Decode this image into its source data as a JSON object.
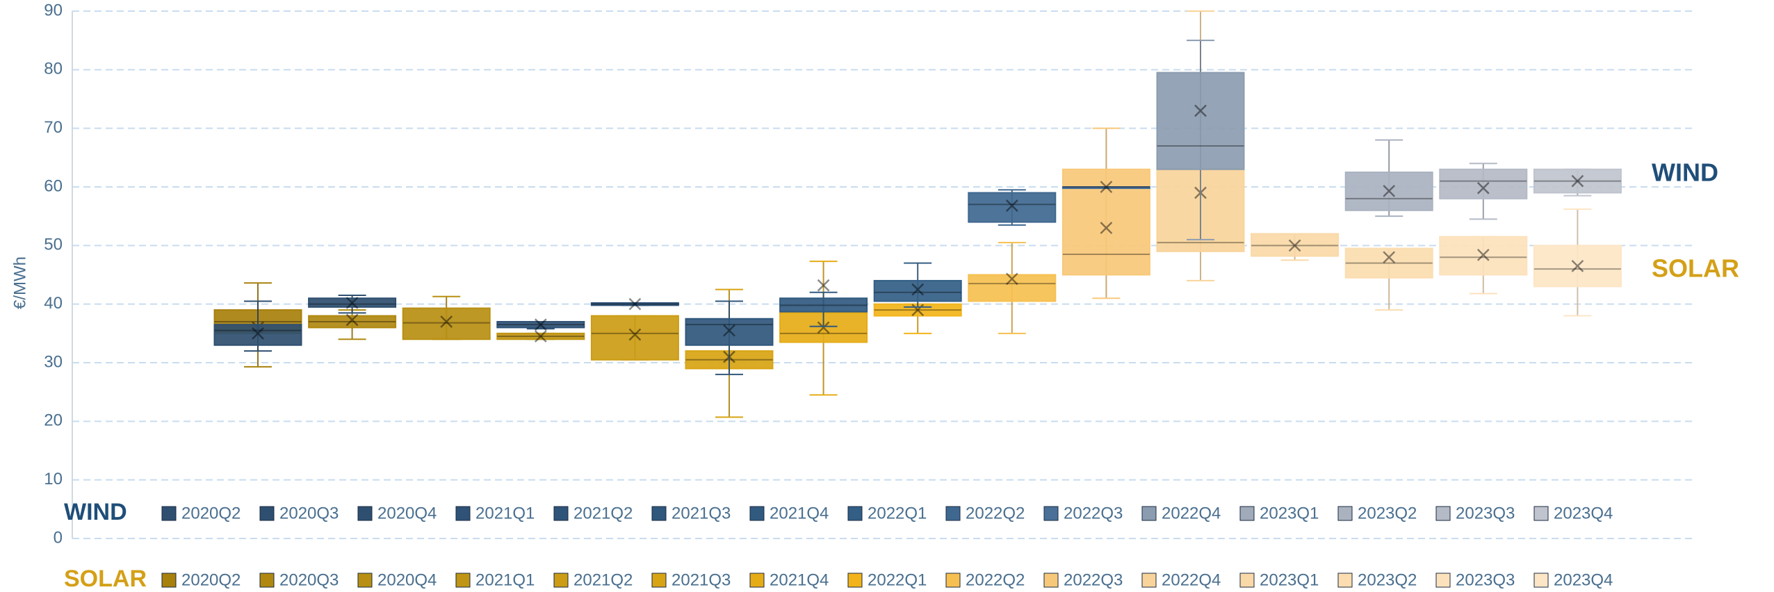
{
  "chart_data": {
    "type": "box",
    "y_label": "€/MWh",
    "categories": [
      "2020Q2",
      "2020Q3",
      "2020Q4",
      "2021Q1",
      "2021Q2",
      "2021Q3",
      "2021Q4",
      "2022Q1",
      "2022Q2",
      "2022Q3",
      "2022Q4",
      "2023Q1",
      "2023Q2",
      "2023Q3",
      "2023Q4"
    ],
    "ylim": [
      0,
      90
    ],
    "yticks": [
      0,
      10,
      20,
      30,
      40,
      50,
      60,
      70,
      80,
      90
    ],
    "grid": true,
    "series": [
      {
        "name": "SOLAR",
        "label_color": "#d4a017",
        "colors": [
          "#a8800c",
          "#b08810",
          "#b88f12",
          "#c09514",
          "#cc9c14",
          "#d8a414",
          "#e6ac16",
          "#f2b41a",
          "#f6c050",
          "#f8c87a",
          "#f9d49a",
          "#fad9a8",
          "#fbddb0",
          "#fce2bc",
          "#fde6c6"
        ],
        "whisker_low": [
          29.3,
          34,
          34,
          34,
          30.5,
          20.7,
          24.5,
          35,
          35,
          41,
          44,
          47.5,
          39,
          41.8,
          38
        ],
        "q1": [
          35,
          36,
          34,
          34,
          30.5,
          29,
          33.5,
          38,
          40.5,
          45,
          49,
          48.2,
          44.5,
          45,
          43
        ],
        "median": [
          37,
          37,
          36.8,
          34.5,
          35,
          30.5,
          35,
          39,
          43.5,
          48.5,
          50.5,
          50,
          47,
          48,
          46
        ],
        "q3": [
          39,
          38,
          39.3,
          35,
          38,
          32,
          38.5,
          40,
          45,
          63,
          63,
          52,
          49.5,
          51.5,
          50
        ],
        "whisker_high": [
          43.6,
          39,
          41.3,
          35,
          38,
          42.5,
          47.3,
          40,
          50.5,
          70,
          90,
          52,
          49.5,
          51.5,
          56.2
        ],
        "mean": [
          36,
          37.3,
          37,
          34.5,
          34.8,
          31,
          36,
          39,
          44.3,
          53,
          59,
          50,
          48,
          48.4,
          46.5
        ]
      },
      {
        "name": "WIND",
        "label_color": "#1f4e79",
        "colors": [
          "#2f4f70",
          "#2f4f70",
          "#2f4f70",
          "#2f5276",
          "#2f5479",
          "#30577c",
          "#315a80",
          "#335e85",
          "#3f6890",
          "#4a7098",
          "#8c9cb0",
          "#a0aab8",
          "#aab2c0",
          "#b4bac6",
          "#c0c4ce"
        ],
        "whisker_low": [
          32,
          38.5,
          null,
          35.8,
          39.8,
          28,
          36.2,
          39.5,
          53.5,
          60,
          51,
          null,
          55,
          54.5,
          58.5
        ],
        "q1": [
          33,
          39.5,
          null,
          36,
          39.8,
          33,
          38.7,
          40.5,
          54,
          60,
          63,
          null,
          56,
          58,
          59
        ],
        "median": [
          35.5,
          40,
          null,
          36.5,
          40,
          36.5,
          39.8,
          42,
          57,
          60,
          67,
          null,
          58,
          61,
          61
        ],
        "q3": [
          36.5,
          41,
          null,
          37,
          40.2,
          37.5,
          41,
          44,
          59,
          60,
          79.5,
          null,
          62.5,
          63,
          63
        ],
        "whisker_high": [
          40.5,
          41.5,
          null,
          37,
          40.2,
          40.5,
          42,
          47,
          59.5,
          60,
          85,
          null,
          68,
          64,
          63
        ],
        "mean": [
          35,
          40.2,
          null,
          36.5,
          40,
          35.5,
          43.2,
          42.5,
          56.8,
          60,
          73,
          null,
          59.3,
          59.8,
          61
        ]
      }
    ]
  }
}
